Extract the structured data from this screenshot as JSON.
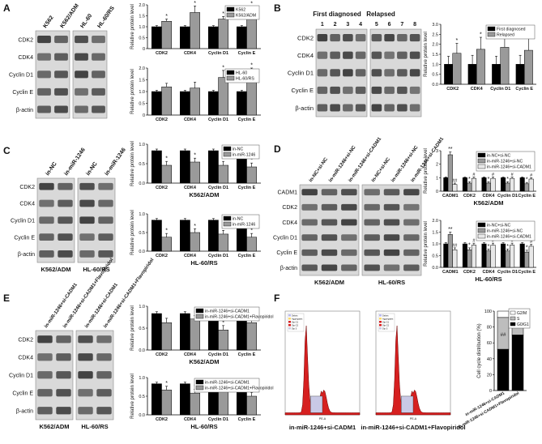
{
  "panels": {
    "A": {
      "letter": "A",
      "lanes": [
        "K562",
        "K562/ADM",
        "HL-60",
        "HL-60/RS"
      ],
      "bands": [
        "CDK2",
        "CDK4",
        "Cyclin D1",
        "Cyclin E",
        "β-actin"
      ],
      "lane_split": 2,
      "charts": [
        {
          "type": "bar",
          "ylabel": "Relative protein level",
          "ylim": [
            0,
            2
          ],
          "yticks": [
            "0",
            "0.5",
            "1.0",
            "1.5",
            "2.0"
          ],
          "categories": [
            "CDK2",
            "CDK4",
            "Cyclin D1",
            "Cyclin E"
          ],
          "series": [
            {
              "name": "K562",
              "color": "#000000",
              "values": [
                1,
                1,
                1,
                1
              ],
              "err": [
                0.05,
                0.05,
                0.05,
                0.05
              ]
            },
            {
              "name": "K562/ADM",
              "color": "#9a9a9a",
              "values": [
                1.25,
                1.65,
                1.35,
                1.65
              ],
              "err": [
                0.1,
                0.3,
                0.12,
                0.28
              ]
            }
          ],
          "marks": [
            "*",
            "*",
            "*",
            "*"
          ],
          "legend_pos": "top-right",
          "subtitle": ""
        },
        {
          "type": "bar",
          "ylabel": "Relative protein level",
          "ylim": [
            0,
            2
          ],
          "yticks": [
            "0",
            "0.5",
            "1.0",
            "1.5",
            "2.0"
          ],
          "categories": [
            "CDK2",
            "CDK4",
            "Cyclin D1",
            "Cyclin E"
          ],
          "series": [
            {
              "name": "HL-60",
              "color": "#000000",
              "values": [
                1,
                1,
                1,
                1
              ],
              "err": [
                0.05,
                0.05,
                0.05,
                0.05
              ]
            },
            {
              "name": "HL-60/RS",
              "color": "#9a9a9a",
              "values": [
                1.2,
                1.15,
                1.6,
                1.7
              ],
              "err": [
                0.15,
                0.25,
                0.3,
                0.3
              ]
            }
          ],
          "marks": [
            "",
            "",
            "*",
            "*"
          ],
          "legend_pos": "top-right",
          "subtitle": ""
        }
      ]
    },
    "B": {
      "letter": "B",
      "headers": [
        "First diagnosed",
        "Relapsed"
      ],
      "lanes": [
        "1",
        "2",
        "3",
        "4",
        "5",
        "6",
        "7",
        "8"
      ],
      "bands": [
        "CDK2",
        "CDK4",
        "Cyclin D1",
        "Cyclin E",
        "β-actin"
      ],
      "lane_split": 4,
      "charts": [
        {
          "type": "bar",
          "ylabel": "Relative protein level",
          "ylim": [
            0,
            3
          ],
          "yticks": [
            "0.0",
            "0.5",
            "1.0",
            "1.5",
            "2.0",
            "2.5",
            "3.0"
          ],
          "categories": [
            "CDK2",
            "CDK4",
            "Cyclin D1",
            "Cyclin E"
          ],
          "series": [
            {
              "name": "First diagnosed",
              "color": "#000000",
              "values": [
                1,
                1,
                1,
                1
              ],
              "err": [
                0.4,
                0.45,
                0.4,
                0.45
              ]
            },
            {
              "name": "Relapsed",
              "color": "#9a9a9a",
              "values": [
                1.55,
                1.75,
                1.85,
                1.7
              ],
              "err": [
                0.5,
                0.6,
                0.7,
                0.6
              ]
            }
          ],
          "marks": [
            "*",
            "*",
            "**",
            "*"
          ],
          "legend_pos": "top-right",
          "subtitle": ""
        }
      ]
    },
    "C": {
      "letter": "C",
      "lanes": [
        "in-NC",
        "in-miR-1246",
        "in-NC",
        "in-miR-1246"
      ],
      "bands": [
        "CDK2",
        "CDK4",
        "Cyclin D1",
        "Cyclin E",
        "β-actin"
      ],
      "lane_split": 2,
      "group_labels": [
        "K562/ADM",
        "HL-60/RS"
      ],
      "charts": [
        {
          "type": "bar",
          "ylabel": "Relative protein level",
          "ylim": [
            0,
            1.2
          ],
          "yticks": [
            "0.0",
            "0.5",
            "1.0"
          ],
          "categories": [
            "CDK2",
            "CDK4",
            "Cyclin D1",
            "Cyclin E"
          ],
          "series": [
            {
              "name": "in-NC",
              "color": "#000000",
              "values": [
                1,
                1,
                1,
                1
              ],
              "err": [
                0.05,
                0.05,
                0.05,
                0.05
              ]
            },
            {
              "name": "in-miR-1246",
              "color": "#9a9a9a",
              "values": [
                0.55,
                0.65,
                0.55,
                0.5
              ],
              "err": [
                0.12,
                0.12,
                0.12,
                0.12
              ]
            }
          ],
          "marks": [
            "*",
            "*",
            "*",
            "*"
          ],
          "legend_pos": "top-right",
          "subtitle": "K562/ADM"
        },
        {
          "type": "bar",
          "ylabel": "Relative protein level",
          "ylim": [
            0,
            1.2
          ],
          "yticks": [
            "0.0",
            "0.5",
            "1.0"
          ],
          "categories": [
            "CDK2",
            "CDK4",
            "Cyclin D1",
            "Cyclin E"
          ],
          "series": [
            {
              "name": "in-NC",
              "color": "#000000",
              "values": [
                1,
                1,
                1,
                1
              ],
              "err": [
                0.05,
                0.05,
                0.05,
                0.05
              ]
            },
            {
              "name": "in-miR-1246",
              "color": "#9a9a9a",
              "values": [
                0.45,
                0.6,
                0.55,
                0.45
              ],
              "err": [
                0.12,
                0.12,
                0.12,
                0.12
              ]
            }
          ],
          "marks": [
            "*",
            "*",
            "*",
            "*"
          ],
          "legend_pos": "top-right",
          "subtitle": "HL-60/RS"
        }
      ]
    },
    "D": {
      "letter": "D",
      "lanes": [
        "in-NC+si-NC",
        "in-miR-1246+si-NC",
        "in-miR-1246+si-CADM1",
        "in-NC+si-NC",
        "in-miR-1246+si-NC",
        "in-miR-1246+si-CADM1"
      ],
      "bands": [
        "CADM1",
        "CDK2",
        "CDK4",
        "Cyclin D1",
        "Cyclin E",
        "β-actin"
      ],
      "lane_split": 3,
      "group_labels": [
        "K562/ADM",
        "HL-60/RS"
      ],
      "charts": [
        {
          "type": "bar",
          "ylabel": "Relative protein level",
          "ylim": [
            0,
            3
          ],
          "yticks": [
            "0",
            "1",
            "2",
            "3"
          ],
          "categories": [
            "CADM1",
            "CDK2",
            "CDK4",
            "Cyclin D1",
            "Cyclin E"
          ],
          "series": [
            {
              "name": "in-NC+si-NC",
              "color": "#000000",
              "values": [
                1,
                1,
                1,
                1,
                1
              ],
              "err": [
                0.05,
                0.05,
                0.05,
                0.05,
                0.05
              ]
            },
            {
              "name": "in-miR-1246+si-NC",
              "color": "#9a9a9a",
              "values": [
                2.7,
                0.6,
                0.6,
                0.6,
                0.55
              ],
              "err": [
                0.2,
                0.1,
                0.1,
                0.1,
                0.1
              ]
            },
            {
              "name": "in-miR-1246+si-CADM1",
              "color": "#e8e8e8",
              "values": [
                0.5,
                0.95,
                0.95,
                0.95,
                0.9
              ],
              "err": [
                0.1,
                0.1,
                0.1,
                0.1,
                0.1
              ]
            }
          ],
          "marks": [
            "**",
            "*",
            "*",
            "*",
            "*"
          ],
          "marks2": [
            "##",
            "#",
            "#",
            "#",
            "#"
          ],
          "legend_pos": "top-right",
          "subtitle": "K562/ADM"
        },
        {
          "type": "bar",
          "ylabel": "Relative protein level",
          "ylim": [
            0,
            2
          ],
          "yticks": [
            "0.0",
            "0.5",
            "1.0",
            "1.5",
            "2.0"
          ],
          "categories": [
            "CADM1",
            "CDK2",
            "CDK4",
            "Cyclin D1",
            "Cyclin E"
          ],
          "series": [
            {
              "name": "in-NC+si-NC",
              "color": "#000000",
              "values": [
                1,
                1,
                1,
                1,
                1
              ],
              "err": [
                0.05,
                0.05,
                0.05,
                0.05,
                0.05
              ]
            },
            {
              "name": "in-miR-1246+si-NC",
              "color": "#9a9a9a",
              "values": [
                1.4,
                0.75,
                0.7,
                0.7,
                0.65
              ],
              "err": [
                0.1,
                0.08,
                0.08,
                0.08,
                0.08
              ]
            },
            {
              "name": "in-miR-1246+si-CADM1",
              "color": "#e8e8e8",
              "values": [
                0.75,
                0.95,
                0.95,
                0.95,
                0.9
              ],
              "err": [
                0.08,
                0.08,
                0.08,
                0.08,
                0.08
              ]
            }
          ],
          "marks": [
            "**",
            "*",
            "*",
            "*",
            "*"
          ],
          "marks2": [
            "##",
            "#",
            "#",
            "#",
            "#"
          ],
          "legend_pos": "top-right",
          "subtitle": "HL-60/RS"
        }
      ]
    },
    "E": {
      "letter": "E",
      "lanes": [
        "in-miR-1246+si-CADM1",
        "in-miR-1246+si-CADM1+Flavopiridol",
        "in-miR-1246+si-CADM1",
        "in-miR-1246+si-CADM1+Flavopiridol"
      ],
      "bands": [
        "CDK2",
        "CDK4",
        "Cyclin D1",
        "Cyclin E",
        "β-actin"
      ],
      "lane_split": 2,
      "group_labels": [
        "K562/ADM",
        "HL-60/RS"
      ],
      "charts": [
        {
          "type": "bar",
          "ylabel": "Relative protein level",
          "ylim": [
            0,
            1.2
          ],
          "yticks": [
            "0.0",
            "0.5",
            "1.0"
          ],
          "categories": [
            "CDK2",
            "CDK4",
            "Cyclin D1",
            "Cyclin E"
          ],
          "series": [
            {
              "name": "in-miR-1246+si-CADM1",
              "color": "#000000",
              "values": [
                1,
                1,
                1,
                1
              ],
              "err": [
                0.05,
                0.05,
                0.05,
                0.05
              ]
            },
            {
              "name": "in-miR-1246+si-CADM1+Flavopiridol",
              "color": "#9a9a9a",
              "values": [
                0.75,
                0.85,
                0.55,
                0.75
              ],
              "err": [
                0.12,
                0.1,
                0.12,
                0.1
              ]
            }
          ],
          "marks": [
            "",
            "*",
            "*",
            "*"
          ],
          "legend_pos": "top-right",
          "subtitle": "K562/ADM"
        },
        {
          "type": "bar",
          "ylabel": "Relative protein level",
          "ylim": [
            0,
            1.2
          ],
          "yticks": [
            "0.0",
            "0.5",
            "1.0"
          ],
          "categories": [
            "CDK2",
            "CDK4",
            "Cyclin D1",
            "Cyclin E"
          ],
          "series": [
            {
              "name": "in-miR-1246+si-CADM1",
              "color": "#000000",
              "values": [
                1,
                1,
                1,
                1
              ],
              "err": [
                0.05,
                0.05,
                0.05,
                0.05
              ]
            },
            {
              "name": "in-miR-1246+si-CADM1+Flavopiridol",
              "color": "#9a9a9a",
              "values": [
                0.8,
                0.7,
                0.8,
                0.6
              ],
              "err": [
                0.12,
                0.12,
                0.1,
                0.12
              ]
            }
          ],
          "marks": [
            "*",
            "*",
            "",
            "*"
          ],
          "legend_pos": "top-right",
          "subtitle": "HL-60/RS"
        }
      ]
    },
    "F": {
      "letter": "F",
      "flow_captions": [
        "in-miR-1246+si-CADM1",
        "in-miR-1246+si-CADM1+Flavopiridol"
      ],
      "flow_xlabel": "PE-A",
      "flow_legend": [
        "Debris",
        "Aggregates",
        "Dip G1",
        "Dip G2",
        "Dip S"
      ],
      "chart": {
        "type": "bar",
        "ylabel": "Cell cycle distribution (%)",
        "ylim": [
          0,
          100
        ],
        "yticks": [
          "0",
          "20",
          "40",
          "60",
          "80",
          "100"
        ],
        "categories": [
          "in-miR-1246+si-CADM1",
          "in-miR-1246+si-CADM1+Flavopiridol"
        ],
        "series": [
          {
            "name": "G0/G1",
            "color": "#000000",
            "values": [
              52,
              70
            ]
          },
          {
            "name": "S",
            "color": "#bdbdbd",
            "values": [
              40,
              22
            ]
          },
          {
            "name": "G2/M",
            "color": "#ffffff",
            "values": [
              8,
              8
            ]
          }
        ],
        "legend_order": [
          "G2/M",
          "S",
          "G0/G1"
        ],
        "marks": [
          "##",
          "**"
        ],
        "legend_pos": "top-right"
      }
    }
  }
}
